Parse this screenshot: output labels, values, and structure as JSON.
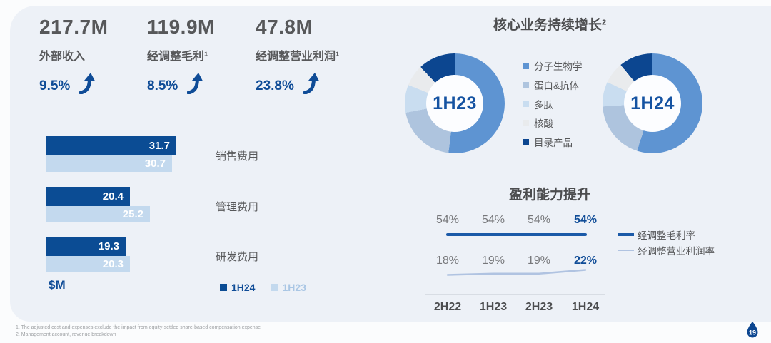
{
  "slide": {
    "page_number": "19",
    "footnotes": [
      "1. The adjusted cost and expenses exclude the impact from equity-settled share-based compensation expense",
      "2. Management account, revenue breakdown"
    ]
  },
  "kpis": [
    {
      "value": "217.7M",
      "label": "外部收入",
      "change": "9.5%",
      "direction": "up"
    },
    {
      "value": "119.9M",
      "label": "经调整毛利¹",
      "change": "8.5%",
      "direction": "up"
    },
    {
      "value": "47.8M",
      "label": "经调整营业利润¹",
      "change": "23.8%",
      "direction": "up"
    }
  ],
  "colors": {
    "accent_navy": "#0f4c97",
    "text_gray": "#57585a",
    "card_bg": "#edf1f7",
    "legend_1h23_text": "#a9c6e4"
  },
  "chart_data": [
    {
      "type": "bar",
      "orientation": "horizontal",
      "unit_label": "$M",
      "categories": [
        "销售费用",
        "管理费用",
        "研发费用"
      ],
      "series": [
        {
          "name": "1H24",
          "color": "#0b4c94",
          "values": [
            31.7,
            20.4,
            19.3
          ]
        },
        {
          "name": "1H23",
          "color": "#c3d9ee",
          "values": [
            30.7,
            25.2,
            20.3
          ]
        }
      ],
      "value_labels": true,
      "legend_position": "bottom-right"
    },
    {
      "type": "pie",
      "title": "核心业务持续增长²",
      "legend": [
        "分子生物学",
        "蛋白&抗体",
        "多肽",
        "核酸",
        "目录产品"
      ],
      "colors": [
        "#5e94d2",
        "#aec4de",
        "#c9ddf0",
        "#e9ebed",
        "#0c4690"
      ],
      "donuts": [
        {
          "label": "1H23",
          "values_pct": [
            52,
            20,
            9,
            7,
            12
          ]
        },
        {
          "label": "1H24",
          "values_pct": [
            55,
            19,
            8,
            7,
            11
          ]
        }
      ]
    },
    {
      "type": "line",
      "title": "盈利能力提升",
      "categories": [
        "2H22",
        "1H23",
        "2H23",
        "1H24"
      ],
      "series": [
        {
          "name": "经调整毛利率",
          "color": "#1b5aa8",
          "values": [
            54,
            54,
            54,
            54
          ],
          "unit": "%"
        },
        {
          "name": "经调整营业利润率",
          "color": "#b0c3e1",
          "values": [
            18,
            19,
            19,
            22
          ],
          "unit": "%"
        }
      ],
      "highlight_last_column": true,
      "legend_position": "right"
    }
  ]
}
